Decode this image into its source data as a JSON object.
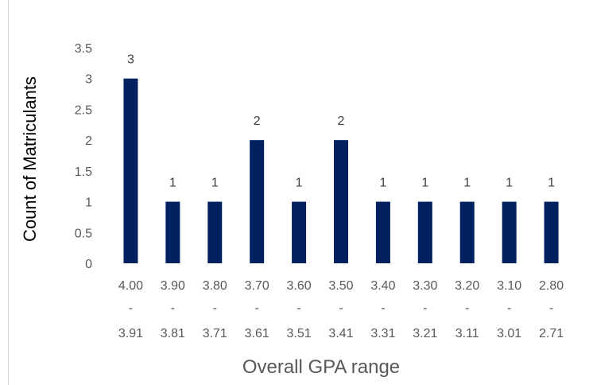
{
  "chart_data": {
    "type": "bar",
    "title": "",
    "xlabel": "Overall GPA range",
    "ylabel": "Count of Matriculants",
    "ylim": [
      0,
      3.5
    ],
    "yticks": [
      "0",
      "0.5",
      "1",
      "1.5",
      "2",
      "2.5",
      "3",
      "3.5"
    ],
    "ytick_values": [
      0,
      0.5,
      1,
      1.5,
      2,
      2.5,
      3,
      3.5
    ],
    "categories": [
      {
        "top": "4.00",
        "sep": "-",
        "bottom": "3.91"
      },
      {
        "top": "3.90",
        "sep": "-",
        "bottom": "3.81"
      },
      {
        "top": "3.80",
        "sep": "-",
        "bottom": "3.71"
      },
      {
        "top": "3.70",
        "sep": "-",
        "bottom": "3.61"
      },
      {
        "top": "3.60",
        "sep": "-",
        "bottom": "3.51"
      },
      {
        "top": "3.50",
        "sep": "-",
        "bottom": "3.41"
      },
      {
        "top": "3.40",
        "sep": "-",
        "bottom": "3.31"
      },
      {
        "top": "3.30",
        "sep": "-",
        "bottom": "3.21"
      },
      {
        "top": "3.20",
        "sep": "-",
        "bottom": "3.11"
      },
      {
        "top": "3.10",
        "sep": "-",
        "bottom": "3.01"
      },
      {
        "top": "2.80",
        "sep": "-",
        "bottom": "2.71"
      }
    ],
    "values": [
      3,
      1,
      1,
      2,
      1,
      2,
      1,
      1,
      1,
      1,
      1
    ],
    "data_labels": [
      "3",
      "1",
      "1",
      "2",
      "1",
      "2",
      "1",
      "1",
      "1",
      "1",
      "1"
    ],
    "bar_color": "#002060",
    "grid": false,
    "legend": "none"
  }
}
